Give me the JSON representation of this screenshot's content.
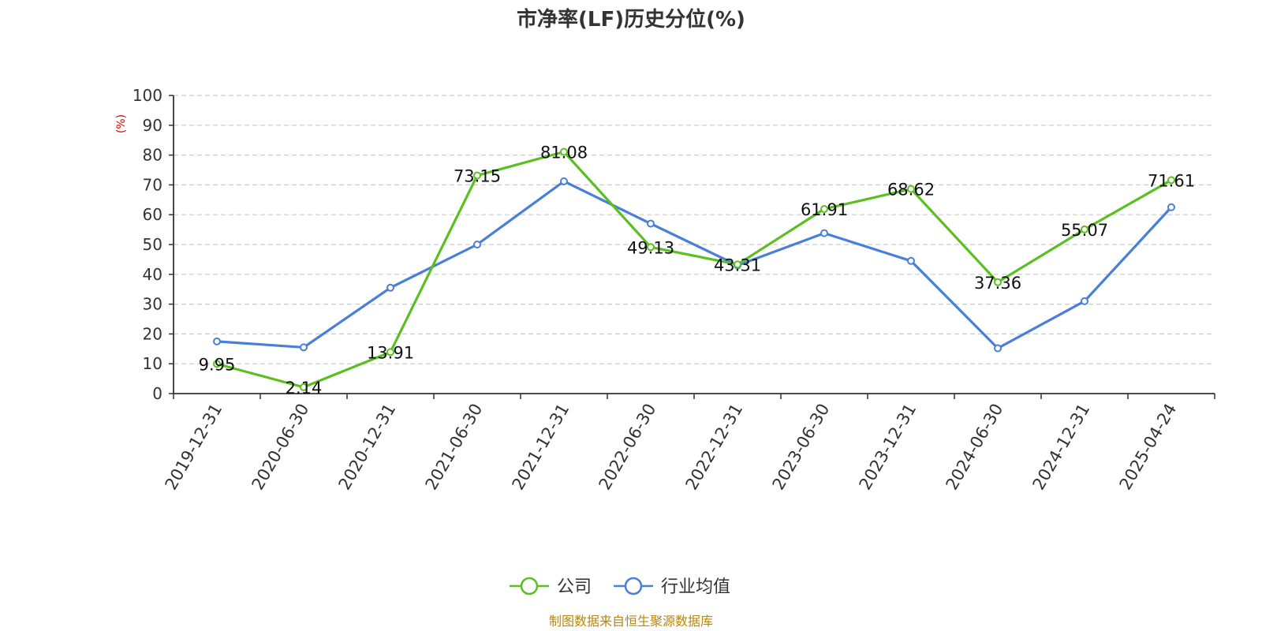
{
  "chart_data": {
    "type": "line",
    "title": "市净率(LF)历史分位(%)",
    "ylabel": "(%)",
    "ylim": [
      0,
      100
    ],
    "yticks": [
      0,
      10,
      20,
      30,
      40,
      50,
      60,
      70,
      80,
      90,
      100
    ],
    "grid": true,
    "legend_position": "bottom",
    "categories": [
      "2019-12-31",
      "2020-06-30",
      "2020-12-31",
      "2021-06-30",
      "2021-12-31",
      "2022-06-30",
      "2022-12-31",
      "2023-06-30",
      "2023-12-31",
      "2024-06-30",
      "2024-12-31",
      "2025-04-24"
    ],
    "series": [
      {
        "name": "公司",
        "color": "#5bbf22",
        "show_labels": true,
        "values": [
          9.95,
          2.14,
          13.91,
          73.15,
          81.08,
          49.13,
          43.31,
          61.91,
          68.62,
          37.36,
          55.07,
          71.61
        ]
      },
      {
        "name": "行业均值",
        "color": "#4a7fd8",
        "show_labels": false,
        "values": [
          17.5,
          15.5,
          35.5,
          50.0,
          71.2,
          57.0,
          43.0,
          53.8,
          44.5,
          15.2,
          31.0,
          62.5
        ]
      }
    ],
    "source": "制图数据来自恒生聚源数据库"
  }
}
